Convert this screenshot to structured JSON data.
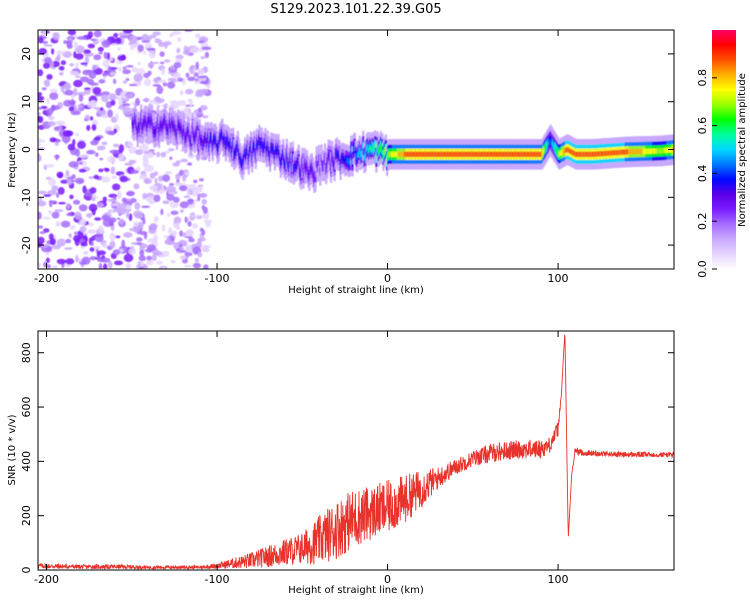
{
  "figure_title": "S129.2023.101.22.39.G05",
  "colors": {
    "snr_line": "#e8322b",
    "colormap": [
      "#ffffff",
      "#e6d5ff",
      "#c9a8ff",
      "#a66dff",
      "#7a1bff",
      "#5a00e8",
      "#0008ff",
      "#0078ff",
      "#00d8ff",
      "#00ff9a",
      "#00ff00",
      "#9aff00",
      "#ffff00",
      "#ffb000",
      "#ff5000",
      "#ff0000",
      "#ff0066"
    ]
  },
  "chart_data": [
    {
      "type": "heatmap",
      "title": "",
      "xlabel": "Height of straight line (km)",
      "ylabel": "Frequency (Hz)",
      "xlim": [
        -205,
        168
      ],
      "ylim": [
        -25,
        25
      ],
      "x_ticks": [
        -200,
        -100,
        0,
        100
      ],
      "x_tick_labels": [
        "-200",
        "-100",
        "0",
        "100"
      ],
      "y_ticks": [
        -20,
        -10,
        0,
        10,
        20
      ],
      "y_tick_labels": [
        "-20",
        "-10",
        "0",
        "10",
        "20"
      ],
      "colorbar": {
        "label": "Normalized spectral amplitude",
        "range": [
          0,
          1
        ],
        "ticks": [
          0.0,
          0.2,
          0.4,
          0.6,
          0.8
        ],
        "tick_labels": [
          "0.0",
          "0.2",
          "0.4",
          "0.6",
          "0.8"
        ]
      },
      "noise_region": {
        "x_range": [
          -205,
          -105
        ],
        "freq_range": [
          -25,
          25
        ],
        "amplitude": 0.15
      },
      "signal_trace": {
        "x": [
          -145,
          -130,
          -115,
          -105,
          -95,
          -85,
          -75,
          -65,
          -55,
          -45,
          -40,
          -30,
          -20,
          -10,
          0,
          10,
          20,
          40,
          60,
          80,
          90,
          95,
          100,
          105,
          110,
          120,
          140,
          160,
          168
        ],
        "frequency": [
          5,
          5,
          3,
          1,
          2,
          -2,
          1,
          -1,
          -3,
          -5,
          -3,
          -2,
          -1,
          0,
          -1,
          -1,
          -1,
          -1,
          -1,
          -1,
          -1,
          2,
          -1,
          0,
          -1,
          -1,
          -0.5,
          -0.3,
          0
        ],
        "amplitude": [
          0.3,
          0.3,
          0.3,
          0.35,
          0.4,
          0.35,
          0.4,
          0.35,
          0.35,
          0.3,
          0.25,
          0.35,
          0.45,
          0.55,
          0.7,
          0.85,
          0.85,
          0.85,
          0.85,
          0.85,
          0.85,
          0.4,
          0.7,
          0.9,
          0.9,
          0.9,
          0.85,
          0.7,
          0.8
        ]
      }
    },
    {
      "type": "line",
      "title": "",
      "xlabel": "Height of straight line (km)",
      "ylabel": "SNR (10 * v/v)",
      "xlim": [
        -205,
        168
      ],
      "ylim": [
        0,
        880
      ],
      "x_ticks": [
        -200,
        -100,
        0,
        100
      ],
      "x_tick_labels": [
        "-200",
        "-100",
        "0",
        "100"
      ],
      "y_ticks": [
        0,
        200,
        400,
        600,
        800
      ],
      "y_tick_labels": [
        "0",
        "200",
        "400",
        "600",
        "800"
      ],
      "series": [
        {
          "x": [
            -205,
            -180,
            -160,
            -140,
            -120,
            -110,
            -100,
            -90,
            -80,
            -70,
            -60,
            -50,
            -40,
            -30,
            -20,
            -10,
            0,
            10,
            20,
            30,
            40,
            50,
            60,
            70,
            80,
            90,
            95,
            100,
            102,
            104,
            106,
            108,
            110,
            115,
            120,
            140,
            160,
            168
          ],
          "values": [
            15,
            12,
            12,
            10,
            10,
            10,
            15,
            25,
            35,
            50,
            65,
            80,
            110,
            150,
            190,
            210,
            230,
            260,
            300,
            340,
            380,
            410,
            430,
            440,
            445,
            445,
            460,
            520,
            650,
            880,
            120,
            350,
            440,
            430,
            430,
            425,
            425,
            425
          ],
          "noise_amplitude": [
            10,
            8,
            8,
            6,
            6,
            6,
            10,
            20,
            30,
            40,
            50,
            60,
            90,
            110,
            110,
            100,
            100,
            90,
            70,
            40,
            30,
            30,
            35,
            35,
            35,
            35,
            30,
            30,
            0,
            0,
            0,
            0,
            15,
            10,
            10,
            10,
            10,
            10
          ]
        }
      ]
    }
  ]
}
